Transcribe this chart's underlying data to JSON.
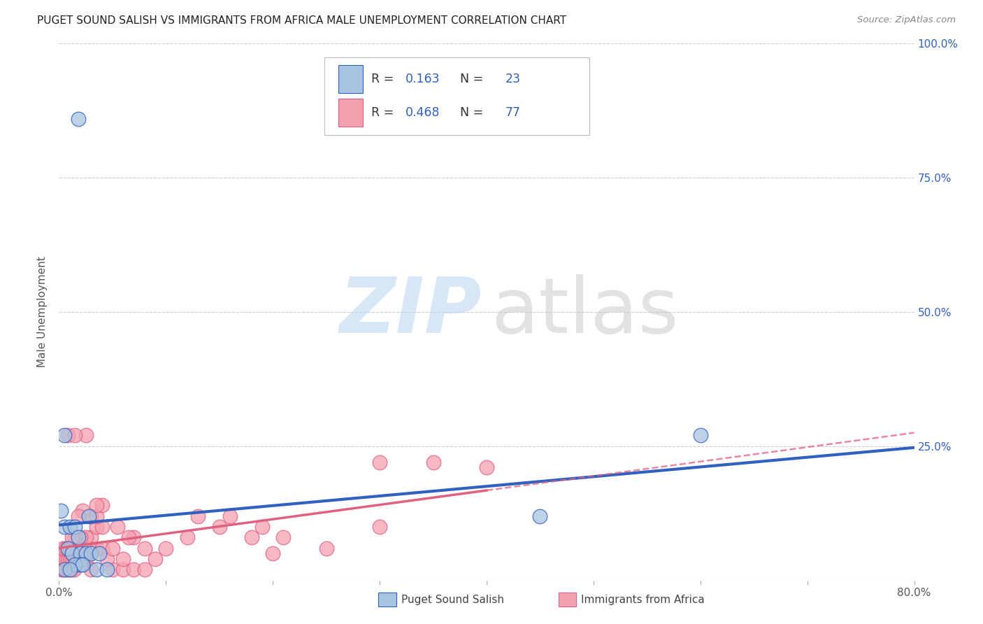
{
  "title": "PUGET SOUND SALISH VS IMMIGRANTS FROM AFRICA MALE UNEMPLOYMENT CORRELATION CHART",
  "source": "Source: ZipAtlas.com",
  "ylabel": "Male Unemployment",
  "xlim": [
    0.0,
    0.8
  ],
  "ylim": [
    0.0,
    1.0
  ],
  "ytick_positions": [
    0.0,
    0.25,
    0.5,
    0.75,
    1.0
  ],
  "ytick_labels": [
    "",
    "25.0%",
    "50.0%",
    "75.0%",
    "100.0%"
  ],
  "color_blue": "#a8c4e0",
  "color_pink": "#f4a0b0",
  "line_blue": "#3060c0",
  "line_pink": "#e06080",
  "background": "#ffffff",
  "blue_points": [
    [
      0.018,
      0.86
    ],
    [
      0.005,
      0.27
    ],
    [
      0.002,
      0.13
    ],
    [
      0.005,
      0.1
    ],
    [
      0.01,
      0.1
    ],
    [
      0.015,
      0.1
    ],
    [
      0.018,
      0.08
    ],
    [
      0.008,
      0.06
    ],
    [
      0.012,
      0.05
    ],
    [
      0.02,
      0.05
    ],
    [
      0.025,
      0.05
    ],
    [
      0.03,
      0.05
    ],
    [
      0.038,
      0.05
    ],
    [
      0.02,
      0.03
    ],
    [
      0.015,
      0.03
    ],
    [
      0.022,
      0.03
    ],
    [
      0.028,
      0.12
    ],
    [
      0.005,
      0.02
    ],
    [
      0.01,
      0.02
    ],
    [
      0.035,
      0.02
    ],
    [
      0.045,
      0.02
    ],
    [
      0.6,
      0.27
    ],
    [
      0.45,
      0.12
    ]
  ],
  "pink_points": [
    [
      0.002,
      0.02
    ],
    [
      0.004,
      0.02
    ],
    [
      0.006,
      0.02
    ],
    [
      0.008,
      0.02
    ],
    [
      0.01,
      0.02
    ],
    [
      0.012,
      0.02
    ],
    [
      0.014,
      0.02
    ],
    [
      0.003,
      0.04
    ],
    [
      0.005,
      0.04
    ],
    [
      0.007,
      0.04
    ],
    [
      0.009,
      0.04
    ],
    [
      0.011,
      0.04
    ],
    [
      0.013,
      0.04
    ],
    [
      0.015,
      0.04
    ],
    [
      0.017,
      0.04
    ],
    [
      0.019,
      0.04
    ],
    [
      0.021,
      0.04
    ],
    [
      0.023,
      0.04
    ],
    [
      0.025,
      0.04
    ],
    [
      0.004,
      0.06
    ],
    [
      0.006,
      0.06
    ],
    [
      0.008,
      0.06
    ],
    [
      0.01,
      0.06
    ],
    [
      0.012,
      0.06
    ],
    [
      0.014,
      0.06
    ],
    [
      0.016,
      0.06
    ],
    [
      0.018,
      0.06
    ],
    [
      0.02,
      0.06
    ],
    [
      0.022,
      0.06
    ],
    [
      0.024,
      0.06
    ],
    [
      0.028,
      0.06
    ],
    [
      0.035,
      0.06
    ],
    [
      0.04,
      0.06
    ],
    [
      0.03,
      0.08
    ],
    [
      0.025,
      0.08
    ],
    [
      0.02,
      0.08
    ],
    [
      0.015,
      0.08
    ],
    [
      0.035,
      0.1
    ],
    [
      0.04,
      0.1
    ],
    [
      0.03,
      0.12
    ],
    [
      0.035,
      0.12
    ],
    [
      0.04,
      0.14
    ],
    [
      0.035,
      0.14
    ],
    [
      0.025,
      0.27
    ],
    [
      0.3,
      0.22
    ],
    [
      0.03,
      0.02
    ],
    [
      0.05,
      0.02
    ],
    [
      0.06,
      0.02
    ],
    [
      0.07,
      0.02
    ],
    [
      0.08,
      0.02
    ],
    [
      0.012,
      0.08
    ],
    [
      0.2,
      0.05
    ],
    [
      0.21,
      0.08
    ],
    [
      0.18,
      0.08
    ],
    [
      0.19,
      0.1
    ],
    [
      0.15,
      0.1
    ],
    [
      0.16,
      0.12
    ],
    [
      0.13,
      0.12
    ],
    [
      0.12,
      0.08
    ],
    [
      0.1,
      0.06
    ],
    [
      0.09,
      0.04
    ],
    [
      0.08,
      0.06
    ],
    [
      0.07,
      0.08
    ],
    [
      0.055,
      0.1
    ],
    [
      0.065,
      0.08
    ],
    [
      0.25,
      0.06
    ],
    [
      0.045,
      0.04
    ],
    [
      0.35,
      0.22
    ],
    [
      0.3,
      0.1
    ],
    [
      0.4,
      0.21
    ],
    [
      0.05,
      0.06
    ],
    [
      0.06,
      0.04
    ],
    [
      0.008,
      0.27
    ],
    [
      0.015,
      0.27
    ],
    [
      0.022,
      0.13
    ],
    [
      0.018,
      0.12
    ]
  ]
}
